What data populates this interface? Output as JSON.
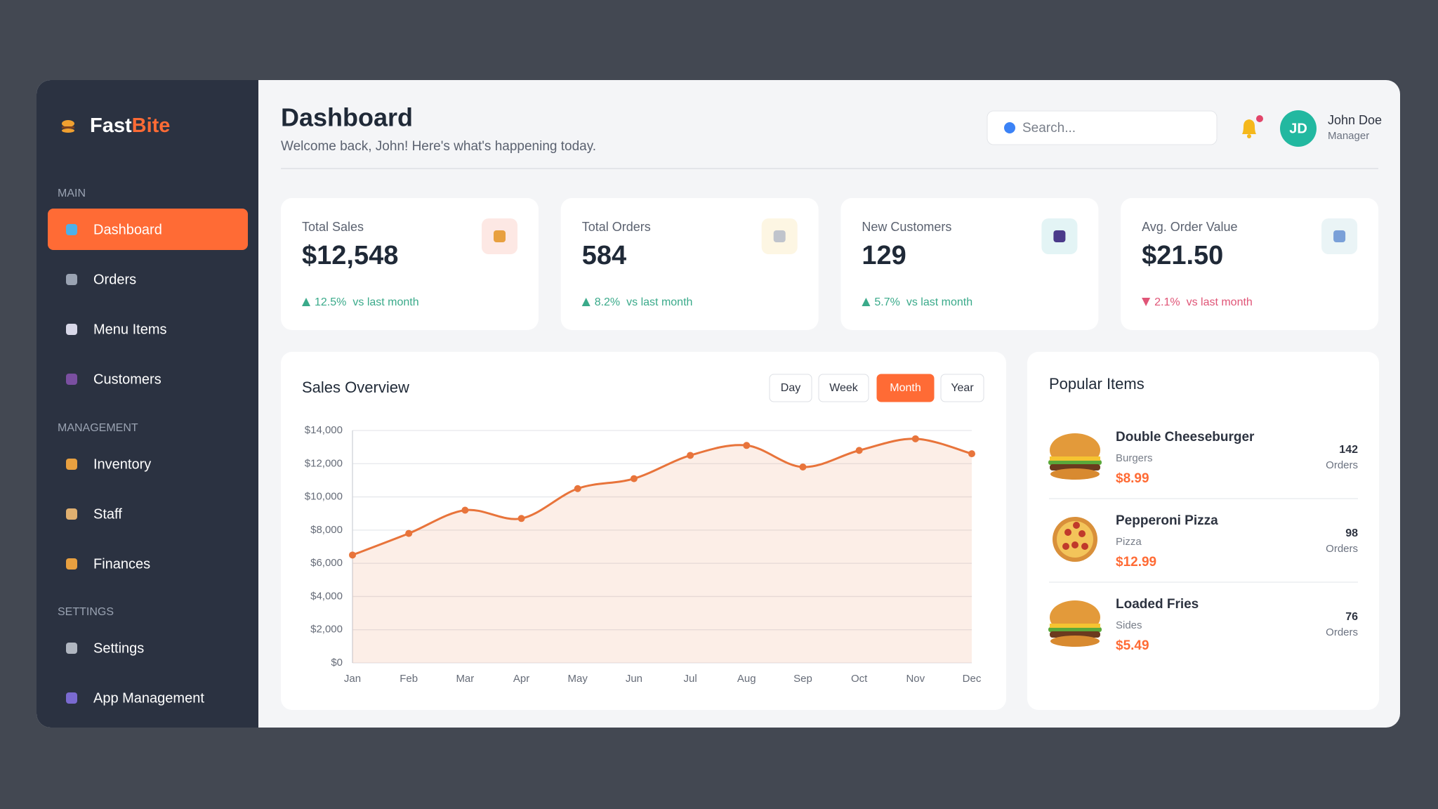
{
  "sidebar": {
    "brand": {
      "first": "Fast",
      "second": "Bite"
    },
    "sections": [
      {
        "title": "MAIN",
        "items": [
          "Dashboard",
          "Orders",
          "Menu Items",
          "Customers"
        ]
      },
      {
        "title": "MANAGEMENT",
        "items": [
          "Inventory",
          "Staff",
          "Finances"
        ]
      },
      {
        "title": "SETTINGS",
        "items": [
          "Settings",
          "App Management"
        ]
      }
    ]
  },
  "header": {
    "title": "Dashboard",
    "subtitle": "Welcome back, John! Here's what's happening today.",
    "search_placeholder": "Search...",
    "user_initials": "JD",
    "user_name": "John Doe",
    "user_role": "Manager"
  },
  "stats": [
    {
      "label": "Total Sales",
      "value": "$12,548",
      "change": "12.5%",
      "note": "vs last month",
      "trend": "up"
    },
    {
      "label": "Total Orders",
      "value": "584",
      "change": "8.2%",
      "note": "vs last month",
      "trend": "up"
    },
    {
      "label": "New Customers",
      "value": "129",
      "change": "5.7%",
      "note": "vs last month",
      "trend": "up"
    },
    {
      "label": "Avg. Order Value",
      "value": "$21.50",
      "change": "2.1%",
      "note": "vs last month",
      "trend": "down"
    }
  ],
  "chart_data": {
    "type": "line",
    "title": "Sales Overview",
    "periods": [
      "Day",
      "Week",
      "Month",
      "Year"
    ],
    "active_period": 2,
    "categories": [
      "Jan",
      "Feb",
      "Mar",
      "Apr",
      "May",
      "Jun",
      "Jul",
      "Aug",
      "Sep",
      "Oct",
      "Nov",
      "Dec"
    ],
    "values": [
      6500,
      7800,
      9200,
      8700,
      10500,
      11100,
      12500,
      13100,
      11800,
      12800,
      13500,
      12600
    ],
    "color": "#e8743b",
    "ylim": [
      0,
      14000
    ],
    "yticks": [
      {
        "value": 0,
        "label": "$0"
      },
      {
        "value": 2000,
        "label": "$2,000"
      },
      {
        "value": 4000,
        "label": "$4,000"
      },
      {
        "value": 6000,
        "label": "$6,000"
      },
      {
        "value": 8000,
        "label": "$8,000"
      },
      {
        "value": 10000,
        "label": "$10,000"
      },
      {
        "value": 12000,
        "label": "$12,000"
      },
      {
        "value": 14000,
        "label": "$14,000"
      }
    ],
    "grid": true
  },
  "popular": {
    "title": "Popular Items",
    "items": [
      {
        "name": "Double Cheeseburger",
        "category": "Burgers",
        "price": "$8.99",
        "orders": 142,
        "orders_label": "Orders"
      },
      {
        "name": "Pepperoni Pizza",
        "category": "Pizza",
        "price": "$12.99",
        "orders": 98,
        "orders_label": "Orders"
      },
      {
        "name": "Loaded Fries",
        "category": "Sides",
        "price": "$5.49",
        "orders": 76,
        "orders_label": "Orders"
      }
    ]
  }
}
